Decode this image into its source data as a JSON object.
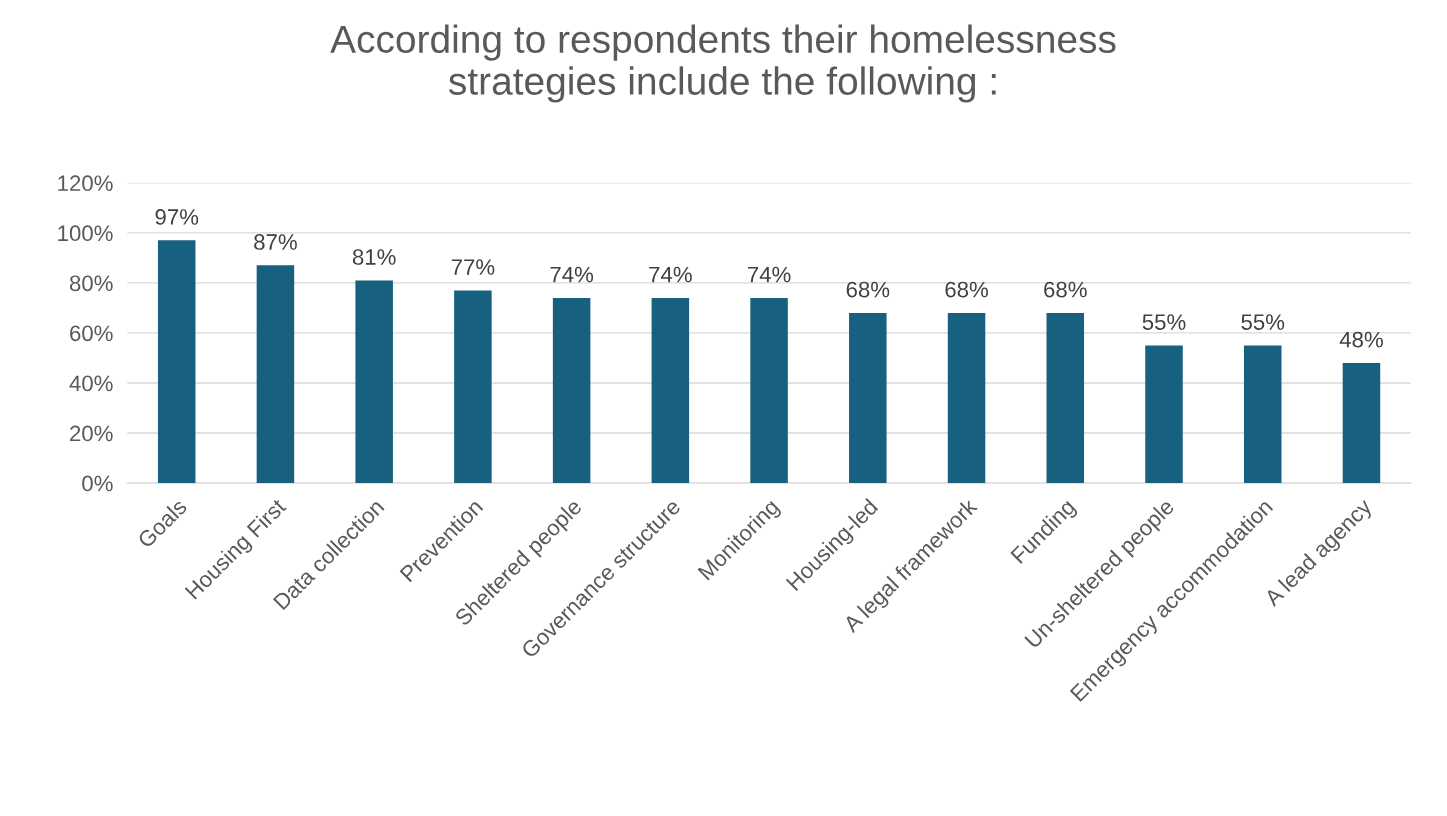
{
  "chart_data": {
    "type": "bar",
    "title": "According to respondents their homelessness\nstrategies include the following :",
    "categories": [
      "Goals",
      "Housing First",
      "Data collection",
      "Prevention",
      "Sheltered people",
      "Governance structure",
      "Monitoring",
      "Housing-led",
      "A legal framework",
      "Funding",
      "Un-sheltered people",
      "Emergency accommodation",
      "A lead agency"
    ],
    "values": [
      97,
      87,
      81,
      77,
      74,
      74,
      74,
      68,
      68,
      68,
      55,
      55,
      48
    ],
    "value_labels": [
      "97%",
      "87%",
      "81%",
      "77%",
      "74%",
      "74%",
      "74%",
      "68%",
      "68%",
      "68%",
      "55%",
      "55%",
      "48%"
    ],
    "color": "#17607f",
    "ylim": [
      0,
      120
    ],
    "yticks": [
      {
        "value": 0,
        "label": "0%"
      },
      {
        "value": 20,
        "label": "20%"
      },
      {
        "value": 40,
        "label": "40%"
      },
      {
        "value": 60,
        "label": "60%"
      },
      {
        "value": 80,
        "label": "80%"
      },
      {
        "value": 100,
        "label": "100%"
      },
      {
        "value": 120,
        "label": "120%"
      }
    ],
    "grid": "y"
  }
}
